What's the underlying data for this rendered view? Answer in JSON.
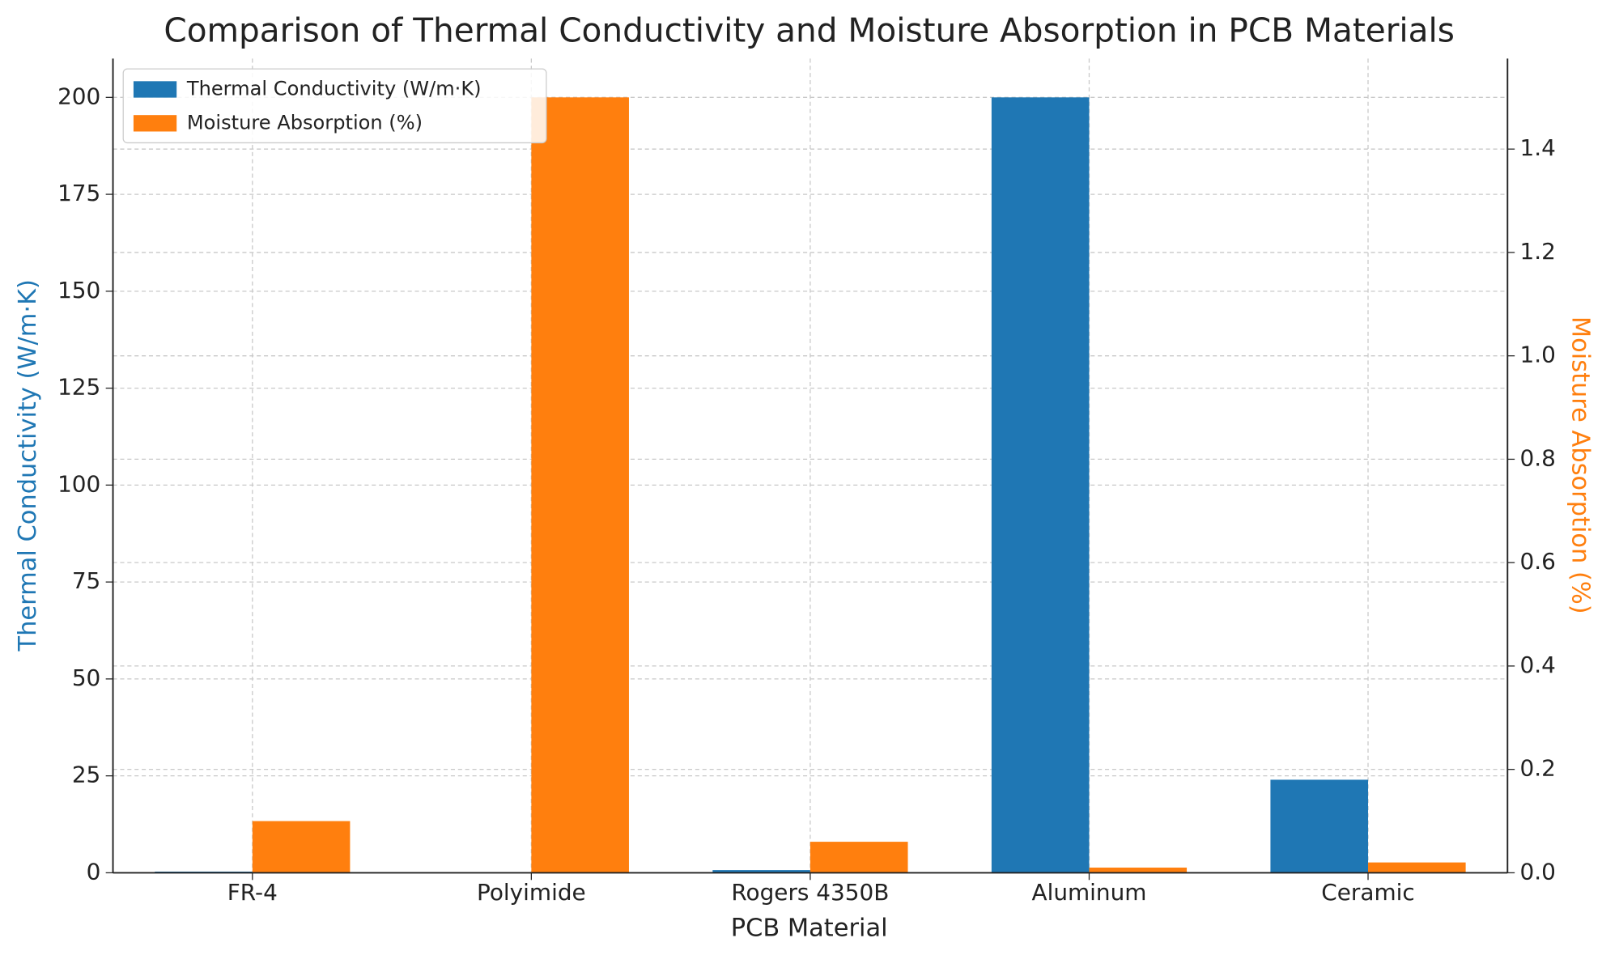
{
  "chart_data": {
    "type": "bar",
    "title": "Comparison of Thermal Conductivity and Moisture Absorption in PCB Materials",
    "x_label": "PCB Material",
    "y_label": "Thermal Conductivity (W/m·K)",
    "y2_label": "Moisture Absorption (%)",
    "categories": [
      "FR-4",
      "Polyimide",
      "Rogers 4350B",
      "Aluminum",
      "Ceramic"
    ],
    "series": [
      {
        "name": "Thermal Conductivity (W/m·K)",
        "color": "#1f77b4",
        "values": [
          0.3,
          0.12,
          0.69,
          200,
          24
        ]
      },
      {
        "name": "Moisture Absorption (%)",
        "color": "#ff7f0e",
        "axis": "y2",
        "values": [
          0.1,
          1.5,
          0.06,
          0.01,
          0.02
        ]
      }
    ],
    "ylim": [
      0,
      210
    ],
    "yticks": [
      0,
      25,
      50,
      75,
      100,
      125,
      150,
      175,
      200
    ],
    "y2lim": [
      0,
      1.575
    ],
    "y2ticks": [
      {
        "value": 0,
        "label": "0.0"
      },
      0.2,
      0.4,
      0.6,
      0.8,
      {
        "value": 1,
        "label": "1.0"
      },
      1.2,
      1.4
    ],
    "grid": true,
    "legend": "upper-left"
  }
}
